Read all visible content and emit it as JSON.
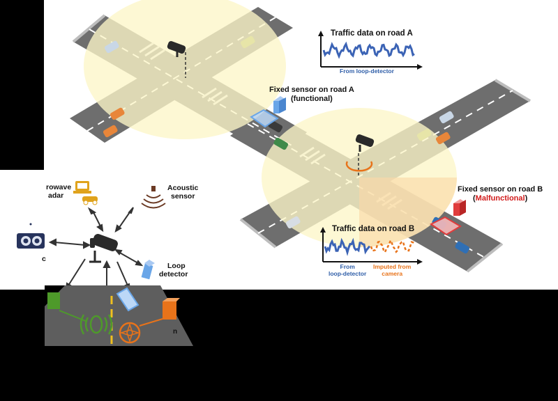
{
  "chart_a": {
    "title": "Traffic data on road A",
    "caption": "From loop-detector",
    "line_color": "#3b63b5"
  },
  "chart_b": {
    "title": "Traffic data on road B",
    "caption_loop_1": "From",
    "caption_loop_2": "loop-detector",
    "caption_cam_1": "Imputed from",
    "caption_cam_2": "camera",
    "loop_color": "#3b63b5",
    "camera_color": "#e8731a"
  },
  "sensor_a": {
    "title": "Fixed sensor on road A",
    "status": "(functional)"
  },
  "sensor_b": {
    "title": "Fixed sensor on road B",
    "status_open": "(",
    "status_word": "Malfunctional",
    "status_close": ")",
    "status_color": "#d11b1b"
  },
  "sensors_panel": {
    "microwave_1": "rowave",
    "microwave_2": "adar",
    "acoustic_1": "Acoustic",
    "acoustic_2": "sensor",
    "loop_1": "Loop",
    "loop_2": "detector",
    "video_partial": "c",
    "partial_label": "n"
  },
  "colors": {
    "road": "#6e6e6e",
    "coverage": "#fdf6c8",
    "coverage_malfunction": "#fbd9a8",
    "sensor_blue": "#6aa6e8",
    "sensor_red": "#e03c3c",
    "sensor_green": "#4e9a2a",
    "sensor_orange": "#e8731a",
    "microwave_yellow": "#e0a31c"
  }
}
